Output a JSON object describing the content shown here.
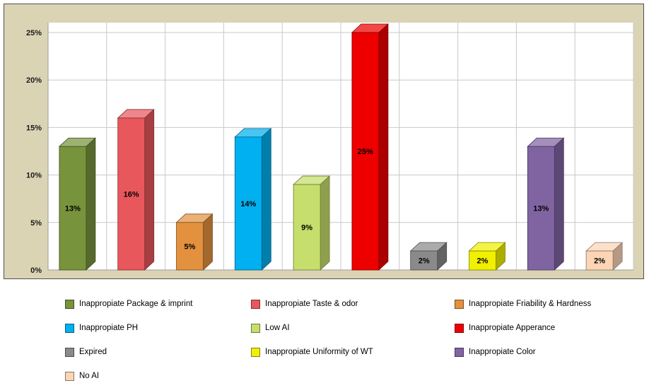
{
  "chart_data": {
    "type": "bar",
    "style": "3d",
    "title": "",
    "categories": [
      "Inappropiate Package & imprint",
      "Inappropiate Taste & odor",
      "Inappropiate Friability & Hardness",
      "Inappropiate PH",
      "Low AI",
      "Inappropiate Apperance",
      "Expired",
      "Inappropiate Uniformity of WT",
      "Inappropiate Color",
      "No AI"
    ],
    "values": [
      13,
      16,
      5,
      14,
      9,
      25,
      2,
      2,
      13,
      2
    ],
    "value_labels": [
      "13%",
      "16%",
      "5%",
      "14%",
      "9%",
      "25%",
      "2%",
      "2%",
      "13%",
      "2%"
    ],
    "colors": [
      "#77933C",
      "#E8575C",
      "#E3913F",
      "#00B0F0",
      "#C6DE6B",
      "#EE0000",
      "#8A8A8A",
      "#F0F000",
      "#8064A2",
      "#FBD5B5"
    ],
    "ylim": [
      0,
      25
    ],
    "ytick_step": 5,
    "ytick_labels": [
      "0%",
      "5%",
      "10%",
      "15%",
      "20%",
      "25%"
    ],
    "grid": true,
    "legend_position": "bottom",
    "wall_color": "#DAD4B5",
    "plot_bg": "#FFFFFF",
    "gridline_color": "#C8C8C8",
    "axis_color": "#9A9A9A",
    "tick_label_color": "#1A1A1A",
    "bar_label_color": "#000000"
  }
}
